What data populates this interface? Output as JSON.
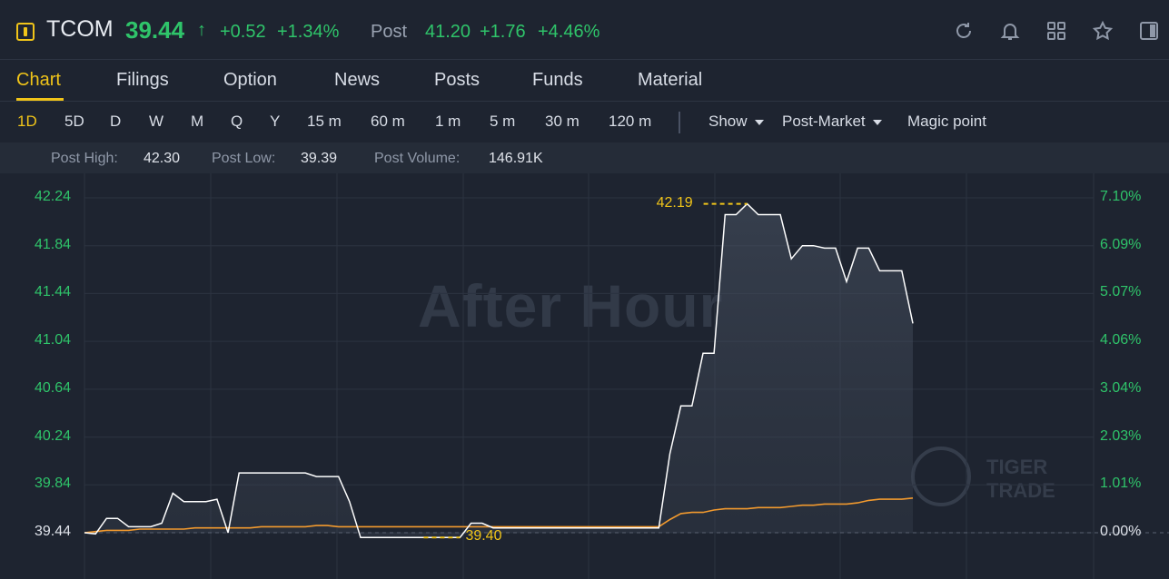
{
  "header": {
    "ticker": "TCOM",
    "price": "39.44",
    "price_arrow": "↑",
    "change": "+0.52",
    "change_pct": "+1.34%",
    "post_label": "Post",
    "post_price": "41.20",
    "post_change": "+1.76",
    "post_change_pct": "+4.46%",
    "icons": [
      "refresh-icon",
      "bell-icon",
      "grid-icon",
      "star-icon",
      "panel-icon"
    ]
  },
  "tabs": [
    "Chart",
    "Filings",
    "Option",
    "News",
    "Posts",
    "Funds",
    "Material"
  ],
  "active_tab": "Chart",
  "periods": [
    "1D",
    "5D",
    "D",
    "W",
    "M",
    "Q",
    "Y",
    "15 m",
    "60 m",
    "1 m",
    "5 m",
    "30 m",
    "120 m"
  ],
  "active_period": "1D",
  "toolbar": {
    "show": "Show",
    "session": "Post-Market",
    "magic": "Magic point"
  },
  "stats": {
    "post_high_label": "Post High:",
    "post_high": "42.30",
    "post_low_label": "Post Low:",
    "post_low": "39.39",
    "post_volume_label": "Post Volume:",
    "post_volume": "146.91K"
  },
  "chart": {
    "watermark": "After Hour",
    "brand_line1": "TIGER",
    "brand_line2": "TRADE",
    "max_annotation": "42.19",
    "min_annotation": "39.40",
    "colors": {
      "price_line": "#ffffff",
      "avg_line": "#f29a2e",
      "up": "#2fc46a",
      "accent": "#f0c419"
    }
  },
  "chart_data": {
    "type": "line",
    "y_left_ticks": [
      "42.24",
      "41.84",
      "41.44",
      "41.04",
      "40.64",
      "40.24",
      "39.84",
      "39.44"
    ],
    "y_right_ticks": [
      "7.10%",
      "6.09%",
      "5.07%",
      "4.06%",
      "3.04%",
      "2.03%",
      "1.01%",
      "0.00%"
    ],
    "ylim": [
      39.44,
      42.24
    ],
    "x": [
      0,
      1,
      2,
      3,
      4,
      5,
      6,
      7,
      8,
      9,
      10,
      11,
      12,
      13,
      14,
      15,
      16,
      17,
      18,
      19,
      20,
      21,
      22,
      23,
      24,
      25,
      26,
      27,
      28,
      29,
      30,
      31,
      32,
      33,
      34,
      35,
      36,
      37,
      38,
      39,
      40,
      41,
      42,
      43,
      44,
      45,
      46,
      47,
      48,
      49,
      50,
      51,
      52,
      53,
      54,
      55,
      56,
      57,
      58,
      59,
      60,
      61,
      62,
      63,
      64,
      65,
      66,
      67,
      68,
      69,
      70,
      71,
      72,
      73,
      74,
      75
    ],
    "series": [
      {
        "values": [
          39.44,
          39.43,
          39.56,
          39.56,
          39.49,
          39.49,
          39.49,
          39.52,
          39.77,
          39.7,
          39.7,
          39.7,
          39.72,
          39.44,
          39.94,
          39.94,
          39.94,
          39.94,
          39.94,
          39.94,
          39.94,
          39.91,
          39.91,
          39.91,
          39.7,
          39.4,
          39.4,
          39.4,
          39.4,
          39.4,
          39.4,
          39.4,
          39.4,
          39.4,
          39.4,
          39.52,
          39.52,
          39.48,
          39.48,
          39.48,
          39.48,
          39.48,
          39.48,
          39.48,
          39.48,
          39.48,
          39.48,
          39.48,
          39.48,
          39.48,
          39.48,
          39.48,
          39.48,
          40.1,
          40.5,
          40.5,
          40.94,
          40.94,
          42.1,
          42.1,
          42.19,
          42.1,
          42.1,
          42.1,
          41.73,
          41.84,
          41.84,
          41.82,
          41.82,
          41.54,
          41.82,
          41.82,
          41.63,
          41.63,
          41.63,
          41.19
        ]
      },
      {
        "values": [
          39.44,
          39.45,
          39.46,
          39.46,
          39.46,
          39.47,
          39.47,
          39.47,
          39.47,
          39.47,
          39.48,
          39.48,
          39.48,
          39.48,
          39.48,
          39.48,
          39.49,
          39.49,
          39.49,
          39.49,
          39.49,
          39.5,
          39.5,
          39.49,
          39.49,
          39.49,
          39.49,
          39.49,
          39.49,
          39.49,
          39.49,
          39.49,
          39.49,
          39.49,
          39.49,
          39.49,
          39.49,
          39.49,
          39.49,
          39.49,
          39.49,
          39.49,
          39.49,
          39.49,
          39.49,
          39.49,
          39.49,
          39.49,
          39.49,
          39.49,
          39.49,
          39.49,
          39.49,
          39.55,
          39.6,
          39.61,
          39.61,
          39.63,
          39.64,
          39.64,
          39.64,
          39.65,
          39.65,
          39.65,
          39.66,
          39.67,
          39.67,
          39.68,
          39.68,
          39.68,
          39.69,
          39.71,
          39.72,
          39.72,
          39.72,
          39.73
        ]
      }
    ]
  }
}
